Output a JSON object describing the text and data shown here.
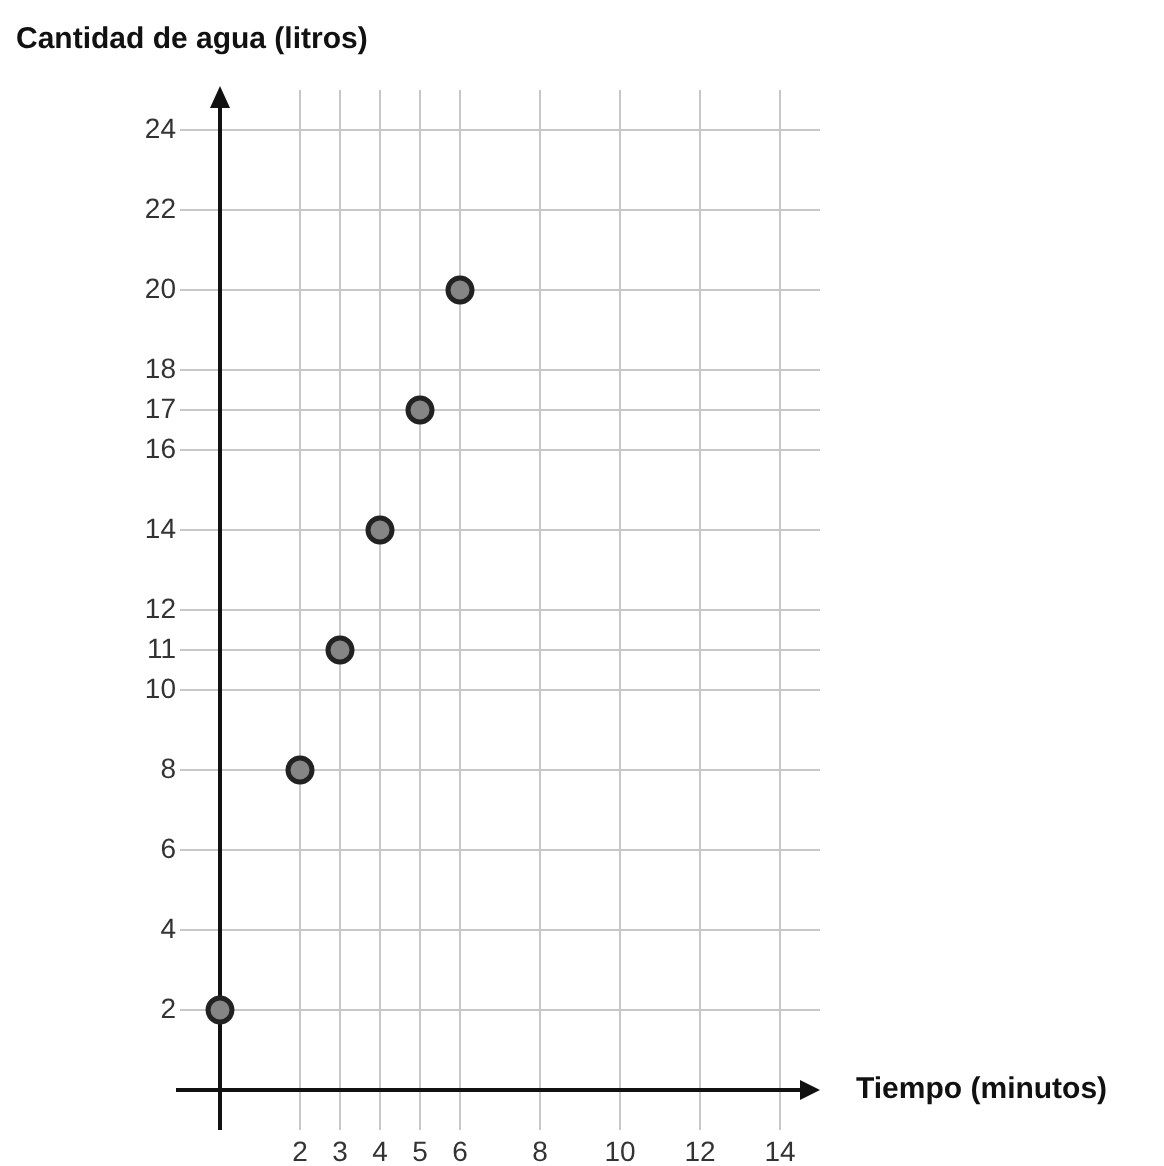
{
  "chart_data": {
    "type": "scatter",
    "xlabel": "Tiempo (minutos)",
    "ylabel": "Cantidad de agua (litros)",
    "x": [
      0,
      2,
      3,
      4,
      5,
      6
    ],
    "series": [
      {
        "color": "#858585",
        "values": [
          2,
          8,
          11,
          14,
          17,
          20
        ]
      }
    ],
    "xlim": [
      -1,
      15
    ],
    "xticks": [
      2,
      3,
      4,
      5,
      6,
      8,
      10,
      12,
      14
    ],
    "ylim": [
      -1,
      25
    ],
    "yticks": [
      2,
      4,
      6,
      8,
      10,
      11,
      12,
      14,
      16,
      17,
      18,
      20,
      22,
      24
    ],
    "grid": true,
    "legend": false,
    "marker": "circle"
  }
}
